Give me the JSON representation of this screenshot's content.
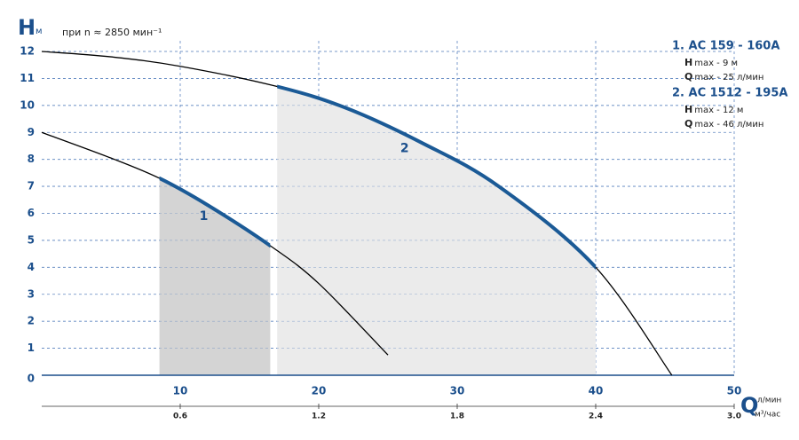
{
  "chart_data": {
    "type": "line",
    "y_label": "H",
    "y_unit": "м",
    "subtitle": "при n ≈ 2850 мин⁻¹",
    "x_label": "Q",
    "x_unit": "л/мин",
    "x2_unit": "м³/час",
    "xlim": [
      0,
      50
    ],
    "xticks": [
      10,
      20,
      30,
      40,
      50
    ],
    "x2lim": [
      0,
      3
    ],
    "x2ticks": [
      0.6,
      1.2,
      1.8,
      2.4,
      {
        "value": 3,
        "label": "3.0"
      }
    ],
    "ylim": [
      0,
      12
    ],
    "yticks": [
      0,
      1,
      2,
      3,
      4,
      5,
      6,
      7,
      8,
      9,
      10,
      11,
      12
    ],
    "grid": true,
    "series": [
      {
        "name": "1",
        "color": "#000000",
        "highlight_color": "#1b5a96",
        "range": [
          8.5,
          16.5
        ],
        "range_color": "#d4d4d4",
        "x": [
          0,
          5,
          8.5,
          12,
          16.5,
          20,
          25
        ],
        "values": [
          9,
          8.05,
          7.3,
          6.3,
          4.8,
          3.4,
          0.75
        ]
      },
      {
        "name": "2",
        "color": "#000000",
        "highlight_color": "#1b5a96",
        "range": [
          17,
          40
        ],
        "range_color": "#ebebeb",
        "x": [
          0,
          5,
          10,
          17,
          22,
          27.5,
          33,
          40,
          45.5
        ],
        "values": [
          12,
          11.8,
          11.45,
          10.7,
          9.9,
          8.6,
          7.0,
          4.0,
          0
        ]
      }
    ],
    "models": [
      {
        "title": "1. AC 159 - 160A",
        "specs": [
          {
            "symbol": "H",
            "text": "max - 9 м"
          },
          {
            "symbol": "Q",
            "text": "max - 25 л/мин"
          }
        ]
      },
      {
        "title": "2. AC 1512 - 195A",
        "specs": [
          {
            "symbol": "H",
            "text": "max - 12 м"
          },
          {
            "symbol": "Q",
            "text": "max - 46 л/мин"
          }
        ]
      }
    ]
  }
}
